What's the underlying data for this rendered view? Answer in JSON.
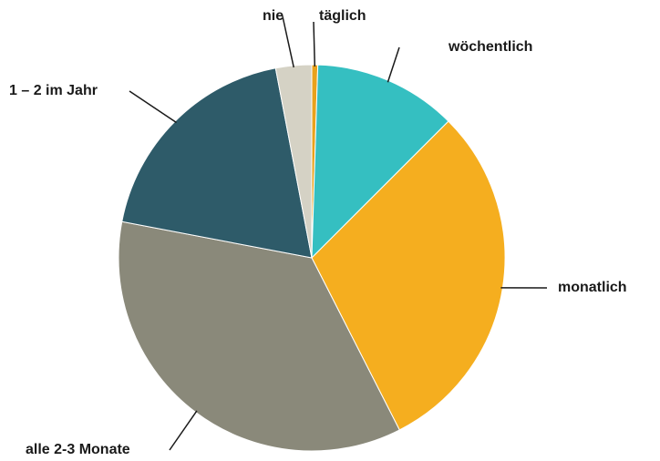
{
  "chart_data": {
    "type": "pie",
    "categories": [
      "täglich",
      "wöchentlich",
      "monatlich",
      "alle 2-3 Monate",
      "1 – 2 im Jahr",
      "nie"
    ],
    "values": [
      0.5,
      12,
      30,
      35.5,
      19,
      3
    ],
    "colors": [
      "#e9a21c",
      "#35bfc1",
      "#f5ae1f",
      "#8a897a",
      "#2e5b69",
      "#d5d2c5"
    ]
  }
}
